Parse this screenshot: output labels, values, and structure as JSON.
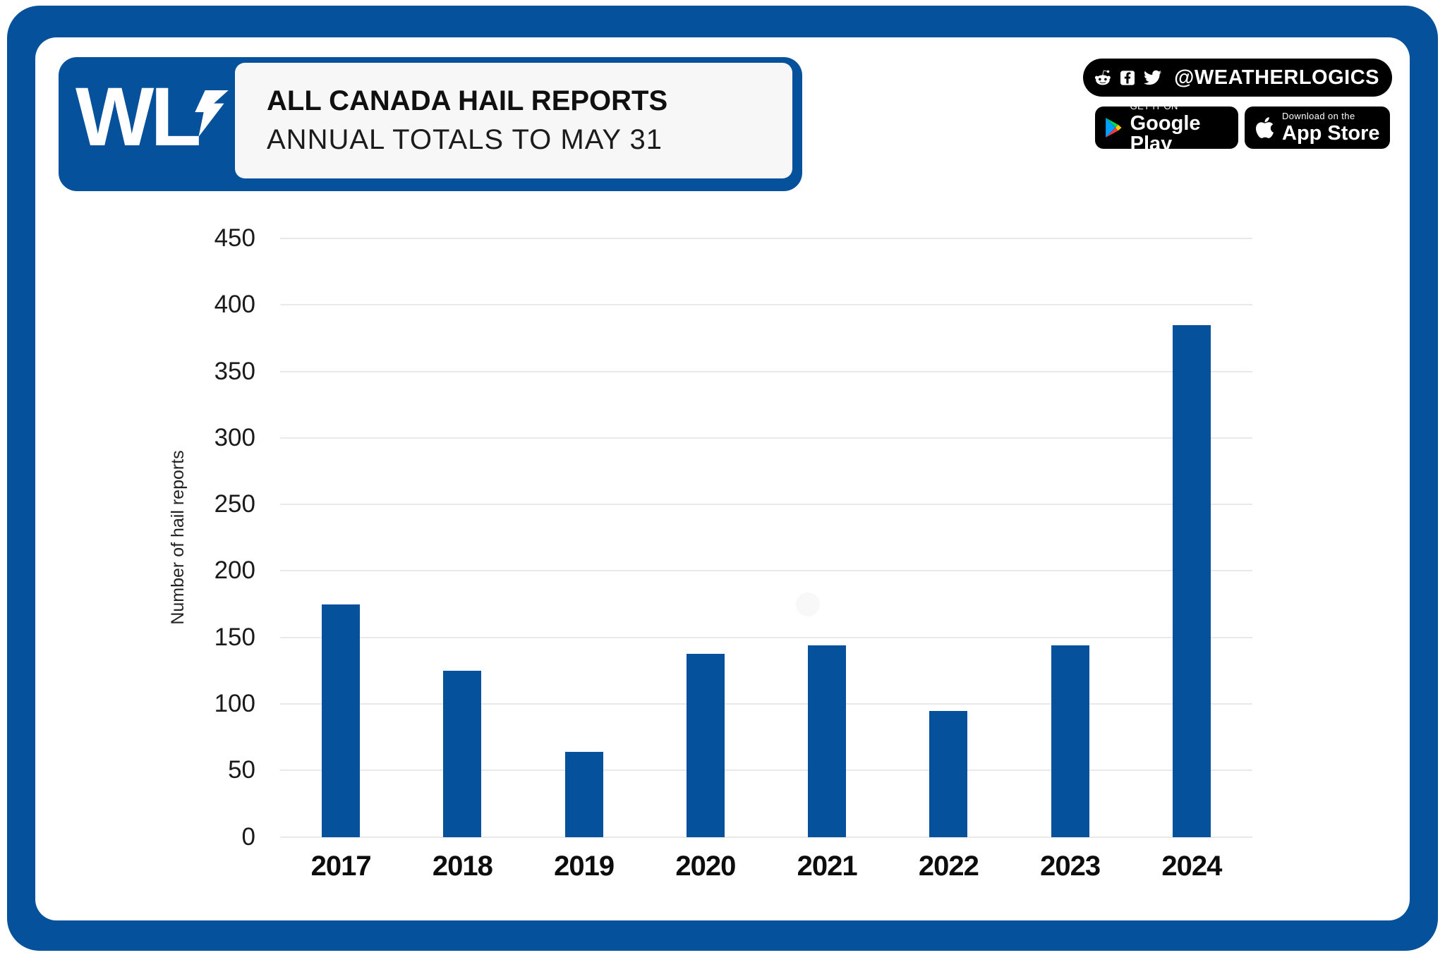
{
  "header": {
    "logo_text": "WL",
    "title": "ALL CANADA HAIL REPORTS",
    "subtitle": "ANNUAL TOTALS TO MAY 31"
  },
  "social": {
    "handle": "@WEATHERLOGICS",
    "icons": [
      "reddit-icon",
      "facebook-icon",
      "twitter-icon"
    ]
  },
  "store_badges": {
    "google_play": {
      "line1": "GET IT ON",
      "line2": "Google Play"
    },
    "app_store": {
      "line1": "Download on the",
      "line2": "App Store"
    }
  },
  "chart_data": {
    "type": "bar",
    "title": "ALL CANADA HAIL REPORTS — ANNUAL TOTALS TO MAY 31",
    "categories": [
      "2017",
      "2018",
      "2019",
      "2020",
      "2021",
      "2022",
      "2023",
      "2024"
    ],
    "values": [
      175,
      125,
      64,
      138,
      144,
      95,
      144,
      385
    ],
    "xlabel": "",
    "ylabel": "Number of hail reports",
    "ylim": [
      0,
      450
    ],
    "yticks": [
      450,
      400,
      350,
      300,
      250,
      200,
      150,
      100,
      50,
      0
    ],
    "grid": "horizontal",
    "legend": "none",
    "bar_color": "#05519B"
  },
  "colors": {
    "brand_blue": "#05519B",
    "bar_blue": "#05519B",
    "grid_line": "#E9E9E9",
    "ink": "#141414",
    "badge_bg": "#000000",
    "panel_bg": "#F7F7F8"
  }
}
